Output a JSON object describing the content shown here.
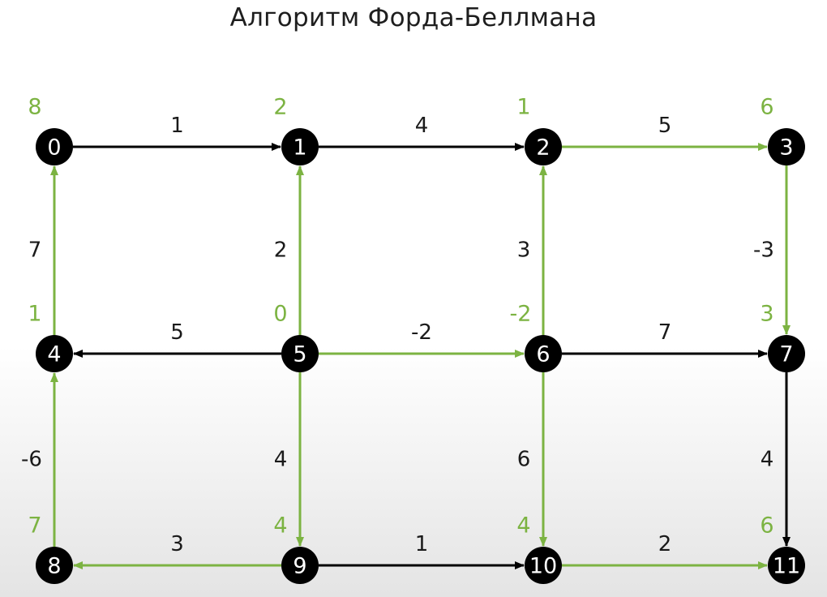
{
  "title": "Алгоритм Форда-Беллмана",
  "colors": {
    "highlight": "#7cb342",
    "normal": "#000000",
    "node": "#000000",
    "node_text": "#ffffff",
    "distance": "#7cb342"
  },
  "nodes": [
    {
      "id": "0",
      "dist": "8"
    },
    {
      "id": "1",
      "dist": "2"
    },
    {
      "id": "2",
      "dist": "1"
    },
    {
      "id": "3",
      "dist": "6"
    },
    {
      "id": "4",
      "dist": "1"
    },
    {
      "id": "5",
      "dist": "0"
    },
    {
      "id": "6",
      "dist": "-2"
    },
    {
      "id": "7",
      "dist": "3"
    },
    {
      "id": "8",
      "dist": "7"
    },
    {
      "id": "9",
      "dist": "4"
    },
    {
      "id": "10",
      "dist": "4"
    },
    {
      "id": "11",
      "dist": "6"
    }
  ],
  "edges": [
    {
      "from": "0",
      "to": "1",
      "weight": "1",
      "highlighted": false
    },
    {
      "from": "1",
      "to": "2",
      "weight": "4",
      "highlighted": false
    },
    {
      "from": "2",
      "to": "3",
      "weight": "5",
      "highlighted": true
    },
    {
      "from": "4",
      "to": "0",
      "weight": "7",
      "highlighted": true
    },
    {
      "from": "5",
      "to": "1",
      "weight": "2",
      "highlighted": true
    },
    {
      "from": "6",
      "to": "2",
      "weight": "3",
      "highlighted": true
    },
    {
      "from": "3",
      "to": "7",
      "weight": "-3",
      "highlighted": true
    },
    {
      "from": "5",
      "to": "4",
      "weight": "5",
      "highlighted": false
    },
    {
      "from": "5",
      "to": "6",
      "weight": "-2",
      "highlighted": true
    },
    {
      "from": "6",
      "to": "7",
      "weight": "7",
      "highlighted": false
    },
    {
      "from": "8",
      "to": "4",
      "weight": "-6",
      "highlighted": true
    },
    {
      "from": "5",
      "to": "9",
      "weight": "4",
      "highlighted": true
    },
    {
      "from": "6",
      "to": "10",
      "weight": "6",
      "highlighted": true
    },
    {
      "from": "7",
      "to": "11",
      "weight": "4",
      "highlighted": false
    },
    {
      "from": "9",
      "to": "8",
      "weight": "3",
      "highlighted": true
    },
    {
      "from": "9",
      "to": "10",
      "weight": "1",
      "highlighted": false
    },
    {
      "from": "10",
      "to": "11",
      "weight": "2",
      "highlighted": true
    }
  ]
}
